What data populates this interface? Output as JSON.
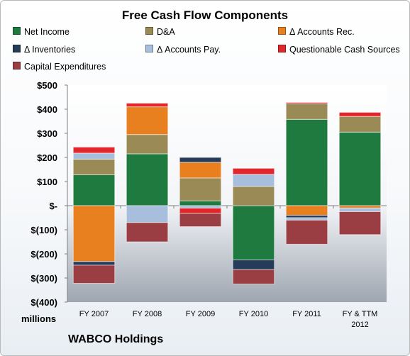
{
  "chart_data": {
    "type": "bar",
    "stacked": true,
    "title": "Free Cash Flow Components",
    "categories": [
      "FY 2007",
      "FY 2008",
      "FY 2009",
      "FY 2010",
      "FY 2011",
      "FY & TTM|2012"
    ],
    "ylim": [
      -400,
      500
    ],
    "yticks": [
      500,
      400,
      300,
      200,
      100,
      0,
      -100,
      -200,
      -300,
      -400
    ],
    "ytick_labels": [
      "$500",
      "$400",
      "$300",
      "$200",
      "$100",
      "$-",
      "$(100)",
      "$(200)",
      "$(300)",
      "$(400)"
    ],
    "units_label": "millions",
    "legend_position": "top",
    "series": [
      {
        "name": "Net Income",
        "color": "#1f7a3f",
        "values": [
          128,
          215,
          20,
          -225,
          358,
          305
        ]
      },
      {
        "name": "D&A",
        "color": "#9a8a55",
        "values": [
          65,
          80,
          95,
          80,
          65,
          65
        ]
      },
      {
        "name": "Δ Accounts Rec.",
        "color": "#e9801f",
        "values": [
          -232,
          115,
          65,
          0,
          -40,
          -10
        ]
      },
      {
        "name": "Δ Inventories",
        "color": "#253b5a",
        "values": [
          -15,
          0,
          20,
          -40,
          -10,
          0
        ]
      },
      {
        "name": "Δ Accounts Pay.",
        "color": "#a7bedd",
        "values": [
          25,
          -70,
          -10,
          50,
          -10,
          -15
        ]
      },
      {
        "name": "Questionable Cash Sources",
        "color": "#e1262c",
        "values": [
          25,
          15,
          -22,
          25,
          5,
          17
        ]
      },
      {
        "name": "Capital Expenditures",
        "color": "#9a3e44",
        "values": [
          -75,
          -80,
          -55,
          -60,
          -100,
          -95
        ]
      }
    ]
  },
  "footer": {
    "company": "WABCO Holdings"
  }
}
